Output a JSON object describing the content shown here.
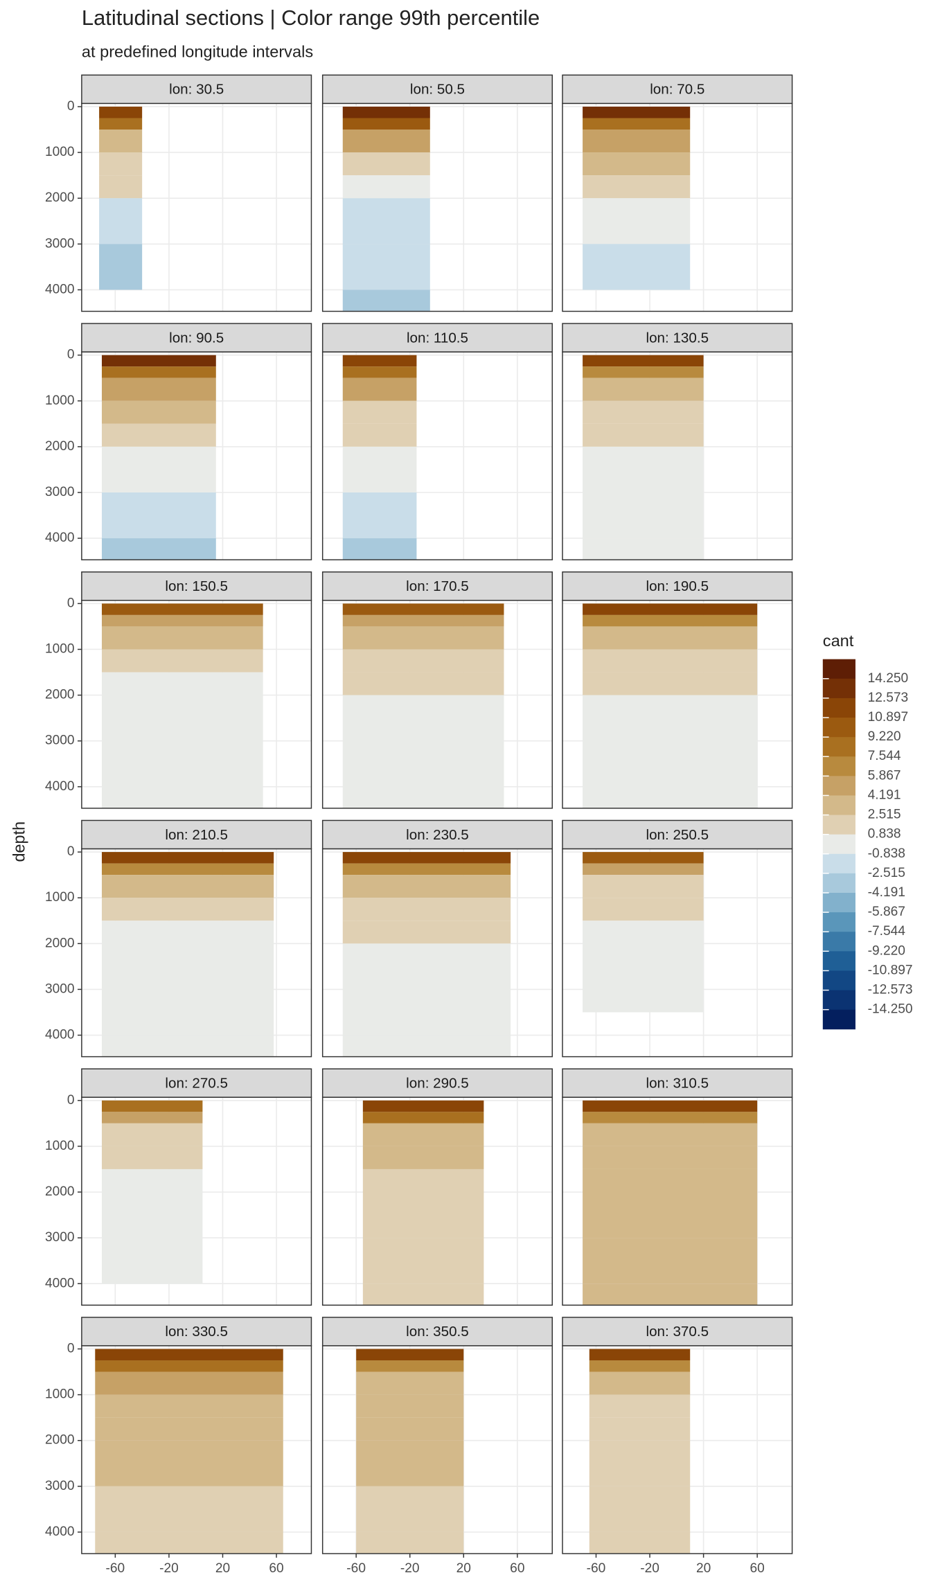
{
  "chart_data": {
    "type": "contour-facets",
    "title": "Latitudinal sections | Color range 99th percentile",
    "subtitle": "at predefined longitude intervals",
    "y_label": "depth",
    "legend_title": "cant",
    "xlim": [
      -85,
      86
    ],
    "ylim": [
      4470,
      -70
    ],
    "xticks": [
      -60,
      -20,
      20,
      60
    ],
    "yticks": [
      0,
      1000,
      2000,
      3000,
      4000
    ],
    "grid": true,
    "depths": [
      0,
      250,
      500,
      1000,
      1500,
      2000,
      3000,
      4000
    ],
    "breaks": [
      {
        "value": 14.25,
        "label": "14.250"
      },
      {
        "value": 12.573,
        "label": "12.573"
      },
      {
        "value": 10.897,
        "label": "10.897"
      },
      {
        "value": 9.22,
        "label": "9.220"
      },
      {
        "value": 7.544,
        "label": "7.544"
      },
      {
        "value": 5.867,
        "label": "5.867"
      },
      {
        "value": 4.191,
        "label": "4.191"
      },
      {
        "value": 2.515,
        "label": "2.515"
      },
      {
        "value": 0.838,
        "label": "0.838"
      },
      {
        "value": -0.838,
        "label": "-0.838"
      },
      {
        "value": -2.515,
        "label": "-2.515"
      },
      {
        "value": -4.191,
        "label": "-4.191"
      },
      {
        "value": -5.867,
        "label": "-5.867"
      },
      {
        "value": -7.544,
        "label": "-7.544"
      },
      {
        "value": -9.22,
        "label": "-9.220"
      },
      {
        "value": -10.897,
        "label": "-10.897"
      },
      {
        "value": -12.573,
        "label": "-12.573"
      },
      {
        "value": -14.25,
        "label": "-14.250"
      }
    ],
    "colors": [
      "#5e1e05",
      "#743006",
      "#8a4507",
      "#9b5a10",
      "#a97020",
      "#b88a3e",
      "#c6a166",
      "#d3b98a",
      "#e0d0b3",
      "#e9ebe8",
      "#c9dde9",
      "#a8c9dc",
      "#82b1cc",
      "#5a96ba",
      "#3a7aa8",
      "#1f5f96",
      "#124784",
      "#0b3372",
      "#041f5e"
    ],
    "facets": [
      {
        "name": "lon: 30.5",
        "lat": [
          -72,
          -40
        ],
        "bottom": 4000,
        "profile": [
          12,
          8,
          4,
          2,
          1,
          -1,
          -3,
          -5
        ]
      },
      {
        "name": "lon: 50.5",
        "lat": [
          -70,
          -5
        ],
        "bottom": 4500,
        "profile": [
          13,
          10,
          5,
          2,
          0.5,
          -1,
          -2,
          -3
        ]
      },
      {
        "name": "lon: 70.5",
        "lat": [
          -70,
          10
        ],
        "bottom": 4000,
        "profile": [
          13,
          9,
          5,
          3,
          2,
          0,
          -1,
          -1.5
        ]
      },
      {
        "name": "lon: 90.5",
        "lat": [
          -70,
          15
        ],
        "bottom": 4500,
        "profile": [
          13,
          9,
          5,
          3,
          2,
          0.5,
          -1,
          -3
        ]
      },
      {
        "name": "lon: 110.5",
        "lat": [
          -70,
          -15
        ],
        "bottom": 4500,
        "profile": [
          12,
          9,
          5,
          2,
          1,
          0,
          -1,
          -3
        ]
      },
      {
        "name": "lon: 130.5",
        "lat": [
          -70,
          20
        ],
        "bottom": 4500,
        "profile": [
          11,
          6,
          3,
          2,
          1,
          0.5,
          0.5,
          0.5
        ]
      },
      {
        "name": "lon: 150.5",
        "lat": [
          -70,
          50
        ],
        "bottom": 4500,
        "profile": [
          10,
          5,
          3,
          1.5,
          0.5,
          0.5,
          0.5,
          0.5
        ]
      },
      {
        "name": "lon: 170.5",
        "lat": [
          -70,
          50
        ],
        "bottom": 4500,
        "profile": [
          10,
          5,
          3,
          2,
          1,
          0.5,
          0.5,
          0.5
        ]
      },
      {
        "name": "lon: 190.5",
        "lat": [
          -70,
          60
        ],
        "bottom": 4500,
        "profile": [
          11,
          6,
          3,
          2,
          1,
          0.5,
          0.5,
          0.5
        ]
      },
      {
        "name": "lon: 210.5",
        "lat": [
          -70,
          58
        ],
        "bottom": 4500,
        "profile": [
          11,
          6,
          3,
          1.5,
          0.5,
          0.5,
          0.5,
          0.5
        ]
      },
      {
        "name": "lon: 230.5",
        "lat": [
          -70,
          55
        ],
        "bottom": 4500,
        "profile": [
          11,
          6,
          3,
          2,
          1,
          0.5,
          0.5,
          0.5
        ]
      },
      {
        "name": "lon: 250.5",
        "lat": [
          -70,
          20
        ],
        "bottom": 3500,
        "profile": [
          10,
          5,
          2,
          1,
          0.5,
          0.5,
          0.5,
          0.5
        ]
      },
      {
        "name": "lon: 270.5",
        "lat": [
          -70,
          5
        ],
        "bottom": 4000,
        "profile": [
          9,
          5,
          2,
          1,
          0.5,
          0.5,
          0.5,
          0.5
        ]
      },
      {
        "name": "lon: 290.5",
        "lat": [
          -55,
          35
        ],
        "bottom": 4500,
        "profile": [
          12,
          8,
          4,
          3,
          2,
          2,
          2,
          2
        ]
      },
      {
        "name": "lon: 310.5",
        "lat": [
          -70,
          60
        ],
        "bottom": 4500,
        "profile": [
          12,
          7,
          4,
          3,
          3,
          3,
          3,
          3
        ]
      },
      {
        "name": "lon: 330.5",
        "lat": [
          -75,
          65
        ],
        "bottom": 4500,
        "profile": [
          12,
          8,
          5,
          4,
          3,
          3,
          2,
          2
        ]
      },
      {
        "name": "lon: 350.5",
        "lat": [
          -60,
          20
        ],
        "bottom": 4500,
        "profile": [
          12,
          7,
          4,
          3,
          3,
          3,
          2,
          2
        ]
      },
      {
        "name": "lon: 370.5",
        "lat": [
          -65,
          10
        ],
        "bottom": 4500,
        "profile": [
          11,
          6,
          3,
          2,
          2,
          1,
          1,
          1
        ]
      }
    ]
  }
}
